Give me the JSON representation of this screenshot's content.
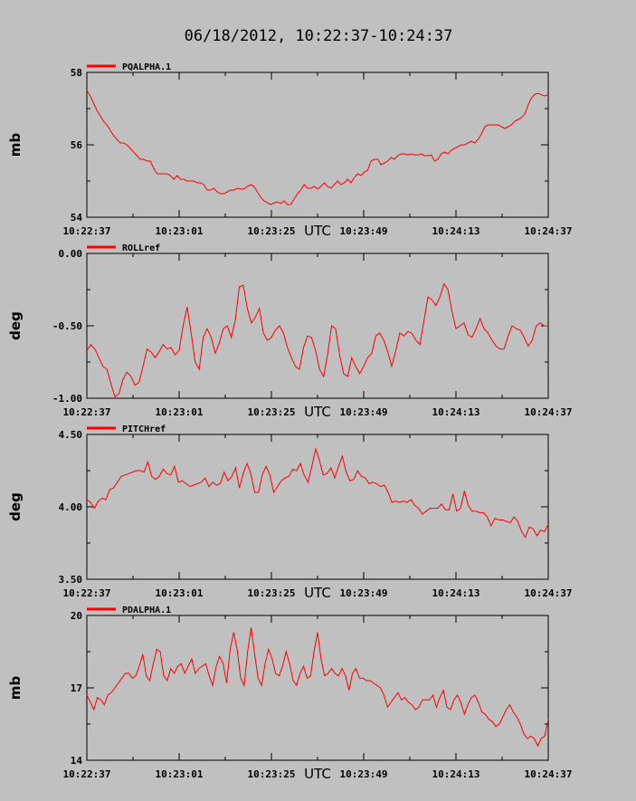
{
  "chart_data": {
    "title": "06/18/2012, 10:22:37-10:24:37",
    "xlabel": "UTC",
    "x_tick_labels": [
      "10:22:37",
      "10:23:01",
      "10:23:25",
      "10:23:49",
      "10:24:13",
      "10:24:37"
    ],
    "line_color": "#ff0000",
    "background_color": "#c0c0c0",
    "grid": false,
    "legend_position": "top-left",
    "panels": [
      {
        "type": "line",
        "series_name": "PQALPHA.1",
        "ylabel": "mb",
        "ylim": [
          54,
          58
        ],
        "y_tick_values": [
          54,
          56,
          58
        ],
        "y_tick_labels": [
          "54",
          "56",
          "58"
        ],
        "values": [
          57.5,
          57.35,
          57.15,
          56.95,
          56.8,
          56.65,
          56.55,
          56.4,
          56.25,
          56.15,
          56.05,
          56.05,
          56.0,
          55.9,
          55.8,
          55.7,
          55.6,
          55.6,
          55.55,
          55.55,
          55.35,
          55.2,
          55.2,
          55.2,
          55.2,
          55.15,
          55.05,
          55.15,
          55.05,
          55.05,
          55.0,
          55.0,
          55.0,
          54.95,
          54.95,
          54.9,
          54.75,
          54.75,
          54.8,
          54.7,
          54.65,
          54.65,
          54.7,
          54.75,
          54.75,
          54.8,
          54.78,
          54.78,
          54.85,
          54.9,
          54.85,
          54.7,
          54.55,
          54.45,
          54.4,
          54.35,
          54.4,
          54.42,
          54.38,
          54.45,
          54.35,
          54.35,
          54.5,
          54.65,
          54.75,
          54.9,
          54.8,
          54.8,
          54.85,
          54.78,
          54.85,
          54.95,
          54.85,
          54.8,
          54.9,
          55.0,
          54.9,
          54.95,
          55.05,
          54.95,
          55.1,
          55.2,
          55.15,
          55.25,
          55.3,
          55.55,
          55.6,
          55.6,
          55.45,
          55.5,
          55.55,
          55.65,
          55.6,
          55.7,
          55.75,
          55.75,
          55.72,
          55.75,
          55.72,
          55.72,
          55.75,
          55.7,
          55.7,
          55.72,
          55.55,
          55.6,
          55.75,
          55.8,
          55.75,
          55.85,
          55.9,
          55.95,
          56.0,
          56.0,
          56.05,
          56.1,
          56.05,
          56.15,
          56.3,
          56.5,
          56.55,
          56.55,
          56.55,
          56.55,
          56.5,
          56.45,
          56.5,
          56.55,
          56.65,
          56.7,
          56.75,
          56.85,
          57.1,
          57.3,
          57.4,
          57.42,
          57.38,
          57.35,
          57.38
        ]
      },
      {
        "type": "line",
        "series_name": "ROLLref",
        "ylabel": "deg",
        "ylim": [
          -1.0,
          0.0
        ],
        "y_tick_values": [
          -1.0,
          -0.5,
          0.0
        ],
        "y_tick_labels": [
          "-1.00",
          "-0.50",
          "0.00"
        ],
        "values": [
          -0.67,
          -0.63,
          -0.66,
          -0.72,
          -0.78,
          -0.8,
          -0.9,
          -0.99,
          -0.97,
          -0.87,
          -0.82,
          -0.85,
          -0.91,
          -0.89,
          -0.78,
          -0.66,
          -0.68,
          -0.72,
          -0.68,
          -0.63,
          -0.66,
          -0.65,
          -0.7,
          -0.67,
          -0.5,
          -0.37,
          -0.55,
          -0.75,
          -0.8,
          -0.58,
          -0.52,
          -0.58,
          -0.69,
          -0.62,
          -0.52,
          -0.5,
          -0.58,
          -0.46,
          -0.23,
          -0.22,
          -0.38,
          -0.48,
          -0.44,
          -0.38,
          -0.55,
          -0.6,
          -0.58,
          -0.53,
          -0.5,
          -0.55,
          -0.65,
          -0.72,
          -0.78,
          -0.8,
          -0.65,
          -0.57,
          -0.58,
          -0.67,
          -0.8,
          -0.85,
          -0.7,
          -0.5,
          -0.52,
          -0.7,
          -0.83,
          -0.85,
          -0.72,
          -0.78,
          -0.83,
          -0.78,
          -0.72,
          -0.69,
          -0.57,
          -0.55,
          -0.6,
          -0.68,
          -0.78,
          -0.67,
          -0.55,
          -0.57,
          -0.54,
          -0.55,
          -0.6,
          -0.63,
          -0.47,
          -0.3,
          -0.32,
          -0.36,
          -0.3,
          -0.21,
          -0.25,
          -0.4,
          -0.52,
          -0.5,
          -0.48,
          -0.56,
          -0.58,
          -0.52,
          -0.45,
          -0.52,
          -0.55,
          -0.6,
          -0.64,
          -0.66,
          -0.66,
          -0.57,
          -0.5,
          -0.52,
          -0.53,
          -0.58,
          -0.64,
          -0.6,
          -0.5,
          -0.48,
          -0.5,
          -0.5
        ]
      },
      {
        "type": "line",
        "series_name": "PITCHref",
        "ylabel": "deg",
        "ylim": [
          3.5,
          4.5
        ],
        "y_tick_values": [
          3.5,
          4.0,
          4.5
        ],
        "y_tick_labels": [
          "3.50",
          "4.00",
          "4.50"
        ],
        "values": [
          4.05,
          4.03,
          3.99,
          4.04,
          4.06,
          4.05,
          4.12,
          4.13,
          4.17,
          4.21,
          4.22,
          4.23,
          4.24,
          4.25,
          4.25,
          4.24,
          4.31,
          4.21,
          4.19,
          4.21,
          4.26,
          4.23,
          4.22,
          4.28,
          4.17,
          4.18,
          4.16,
          4.14,
          4.15,
          4.16,
          4.17,
          4.2,
          4.14,
          4.17,
          4.15,
          4.16,
          4.24,
          4.18,
          4.21,
          4.27,
          4.13,
          4.23,
          4.3,
          4.23,
          4.1,
          4.1,
          4.22,
          4.28,
          4.22,
          4.1,
          4.14,
          4.18,
          4.2,
          4.21,
          4.26,
          4.25,
          4.3,
          4.22,
          4.17,
          4.28,
          4.4,
          4.32,
          4.22,
          4.23,
          4.27,
          4.2,
          4.28,
          4.35,
          4.24,
          4.18,
          4.19,
          4.25,
          4.21,
          4.2,
          4.16,
          4.17,
          4.16,
          4.14,
          4.15,
          4.1,
          4.03,
          4.04,
          4.03,
          4.04,
          4.03,
          4.05,
          4.01,
          3.99,
          3.95,
          3.97,
          3.99,
          3.99,
          3.99,
          4.02,
          3.98,
          3.98,
          4.09,
          3.97,
          3.99,
          4.11,
          4.01,
          3.97,
          3.97,
          3.96,
          3.96,
          3.93,
          3.87,
          3.92,
          3.91,
          3.91,
          3.9,
          3.89,
          3.93,
          3.9,
          3.83,
          3.79,
          3.86,
          3.85,
          3.8,
          3.84,
          3.83,
          3.88
        ]
      },
      {
        "type": "line",
        "series_name": "PDALPHA.1",
        "ylabel": "mb",
        "ylim": [
          14,
          20
        ],
        "y_tick_values": [
          14,
          17,
          20
        ],
        "y_tick_labels": [
          "14",
          "17",
          "20"
        ],
        "values": [
          16.7,
          16.4,
          16.1,
          16.6,
          16.5,
          16.3,
          16.7,
          16.8,
          17.0,
          17.2,
          17.4,
          17.6,
          17.6,
          17.4,
          17.5,
          17.9,
          18.4,
          17.5,
          17.3,
          18.0,
          18.6,
          18.5,
          17.5,
          17.3,
          17.8,
          17.6,
          17.9,
          18.0,
          17.6,
          17.9,
          18.2,
          17.6,
          17.8,
          17.9,
          18.0,
          17.5,
          17.1,
          17.9,
          18.3,
          18.0,
          17.2,
          18.6,
          19.3,
          18.6,
          17.4,
          17.1,
          18.5,
          19.5,
          18.4,
          17.4,
          17.1,
          18.0,
          18.6,
          18.2,
          17.6,
          17.5,
          17.9,
          18.5,
          18.0,
          17.3,
          17.1,
          17.6,
          17.9,
          17.4,
          17.5,
          18.5,
          19.3,
          18.2,
          17.5,
          17.6,
          17.8,
          17.6,
          17.5,
          17.8,
          17.5,
          16.9,
          17.6,
          17.8,
          17.4,
          17.4,
          17.3,
          17.3,
          17.2,
          17.1,
          17.0,
          16.7,
          16.2,
          16.4,
          16.6,
          16.8,
          16.5,
          16.6,
          16.4,
          16.3,
          16.1,
          16.2,
          16.5,
          16.5,
          16.5,
          16.7,
          16.2,
          16.6,
          16.9,
          16.2,
          16.1,
          16.5,
          16.7,
          16.4,
          15.9,
          16.3,
          16.6,
          16.7,
          16.4,
          16.0,
          15.9,
          15.7,
          15.6,
          15.4,
          15.5,
          15.8,
          16.1,
          16.3,
          16.0,
          15.8,
          15.5,
          15.1,
          14.9,
          15.0,
          14.9,
          14.6,
          14.9,
          15.0,
          15.7
        ]
      }
    ]
  }
}
